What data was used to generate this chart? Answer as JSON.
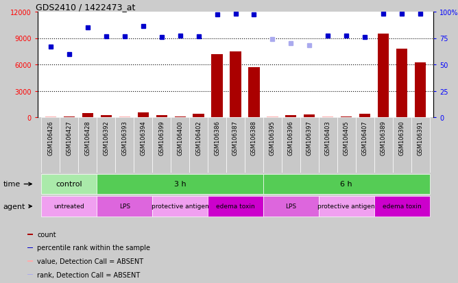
{
  "title": "GDS2410 / 1422473_at",
  "samples": [
    "GSM106426",
    "GSM106427",
    "GSM106428",
    "GSM106392",
    "GSM106393",
    "GSM106394",
    "GSM106399",
    "GSM106400",
    "GSM106402",
    "GSM106386",
    "GSM106387",
    "GSM106388",
    "GSM106395",
    "GSM106396",
    "GSM106397",
    "GSM106403",
    "GSM106405",
    "GSM106407",
    "GSM106389",
    "GSM106390",
    "GSM106391"
  ],
  "counts": [
    100,
    70,
    450,
    250,
    100,
    550,
    250,
    100,
    400,
    7200,
    7500,
    5700,
    100,
    200,
    350,
    100,
    100,
    400,
    9500,
    7800,
    6200
  ],
  "counts_absent": [
    true,
    false,
    false,
    false,
    true,
    false,
    false,
    false,
    false,
    false,
    false,
    false,
    true,
    false,
    false,
    true,
    false,
    false,
    false,
    false,
    false
  ],
  "percentile_ranks": [
    8000,
    7200,
    10200,
    9200,
    9200,
    10400,
    9100,
    9300,
    9200,
    11700,
    11800,
    11700,
    null,
    null,
    null,
    9300,
    9300,
    9100,
    11800,
    11800,
    11800
  ],
  "ranks_absent": [
    false,
    false,
    false,
    false,
    false,
    false,
    false,
    false,
    false,
    false,
    false,
    false,
    true,
    true,
    true,
    false,
    false,
    false,
    false,
    false,
    false
  ],
  "ranks_absent_values": [
    null,
    null,
    null,
    null,
    null,
    null,
    null,
    null,
    null,
    null,
    null,
    null,
    8900,
    8400,
    8200,
    null,
    null,
    null,
    null,
    null,
    null
  ],
  "ylim_left": [
    0,
    12000
  ],
  "ylim_right": [
    0,
    100
  ],
  "yticks_left": [
    0,
    3000,
    6000,
    9000,
    12000
  ],
  "yticks_right": [
    0,
    25,
    50,
    75,
    100
  ],
  "right_tick_labels": [
    "0",
    "25",
    "50",
    "75",
    "100%"
  ],
  "bar_color_present": "#aa0000",
  "bar_color_absent": "#ffaaaa",
  "dot_color_present": "#0000cc",
  "dot_color_absent": "#aaaaee",
  "fig_bg": "#cccccc",
  "plot_bg": "#ffffff",
  "label_bg": "#c0c0c0",
  "time_groups": [
    {
      "label": "control",
      "start": 0,
      "end": 3,
      "color": "#aaeaaa"
    },
    {
      "label": "3 h",
      "start": 3,
      "end": 12,
      "color": "#55cc55"
    },
    {
      "label": "6 h",
      "start": 12,
      "end": 21,
      "color": "#55cc55"
    }
  ],
  "agent_groups": [
    {
      "label": "untreated",
      "start": 0,
      "end": 3,
      "color": "#f0a0f0"
    },
    {
      "label": "LPS",
      "start": 3,
      "end": 6,
      "color": "#dd66dd"
    },
    {
      "label": "protective antigen",
      "start": 6,
      "end": 9,
      "color": "#f0a0f0"
    },
    {
      "label": "edema toxin",
      "start": 9,
      "end": 12,
      "color": "#cc00cc"
    },
    {
      "label": "LPS",
      "start": 12,
      "end": 15,
      "color": "#dd66dd"
    },
    {
      "label": "protective antigen",
      "start": 15,
      "end": 18,
      "color": "#f0a0f0"
    },
    {
      "label": "edema toxin",
      "start": 18,
      "end": 21,
      "color": "#cc00cc"
    }
  ],
  "time_label": "time",
  "agent_label": "agent"
}
